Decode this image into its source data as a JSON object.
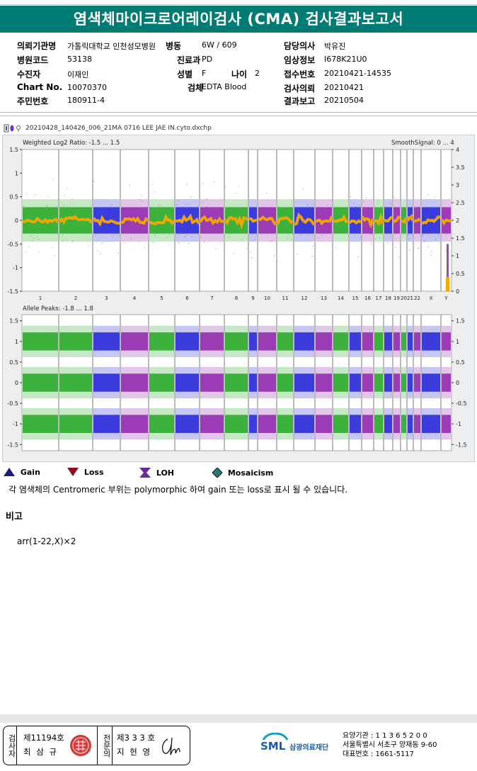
{
  "report_title": "염색체마이크로어레이검사 (CMA) 검사결과보고서",
  "patient_info": [
    {
      "label": "의뢰기관명",
      "value": "가톨릭대학교 인천성모병원"
    },
    {
      "label": "병동",
      "value": "6W / 609"
    },
    {
      "label": "담당의사",
      "value": "박유진"
    },
    {
      "label": "병원코드",
      "value": "53138"
    },
    {
      "label": "진료과",
      "value": "PD"
    },
    {
      "label": "임상정보",
      "value": "I678K21U0"
    },
    {
      "label": "수진자",
      "value": "이재인"
    },
    {
      "label": "성별",
      "value": "F"
    },
    {
      "label": "나이",
      "value": "2"
    },
    {
      "label": "접수번호",
      "value": "20210421-14535"
    },
    {
      "label": "Chart No.",
      "value": "10070370"
    },
    {
      "label": "검체",
      "value": "EDTA Blood"
    },
    {
      "label": "검사의뢰",
      "value": "20210421"
    },
    {
      "label": "주민번호",
      "value": "180911-4"
    },
    {
      "label": "결과보고",
      "value": "20210504"
    }
  ],
  "file_name": "20210428_140426_006_21MA 0716 LEE JAE IN.cyto.dxchp",
  "plot_top": {
    "label_left": "Weighted Log2 Ratio: -1.5 ... 1.5",
    "label_right": "SmoothSignal: 0 ... 4",
    "y_left_ticks": [
      "1.5",
      "1",
      "0.5",
      "0",
      "-0.5",
      "-1",
      "-1.5"
    ],
    "y_right_ticks": [
      "4",
      "3.5",
      "3",
      "2.5",
      "2",
      "1.5",
      "1",
      "0.5",
      "0"
    ]
  },
  "plot_bottom": {
    "label_left": "Allele Peaks: -1.8 ... 1.8",
    "y_left_ticks": [
      "1.5",
      "1",
      "0.5",
      "0",
      "-0.5",
      "-1",
      "-1.5"
    ],
    "y_right_ticks": [
      "1.5",
      "1",
      "0.5",
      "0",
      "-0.5",
      "-1",
      "-1.5"
    ]
  },
  "chromosomes": [
    "1",
    "2",
    "3",
    "4",
    "5",
    "6",
    "7",
    "8",
    "9",
    "10",
    "11",
    "12",
    "13",
    "14",
    "15",
    "16",
    "17",
    "18",
    "19",
    "20",
    "21",
    "22",
    "X",
    "Y"
  ],
  "colors": {
    "green": "#1aa41a",
    "blue": "#1a1ad6",
    "purple": "#8a1aa8",
    "orange": "#f5a800",
    "teal": "#007b74"
  },
  "legend": [
    {
      "icon": "gain-triangle-icon",
      "label": "Gain"
    },
    {
      "icon": "loss-triangle-icon",
      "label": "Loss"
    },
    {
      "icon": "loh-icon",
      "label": "LOH"
    },
    {
      "icon": "mosaicism-diamond-icon",
      "label": "Mosaicism"
    }
  ],
  "note": "각 염색체의 Centromeric 부위는 polymorphic 하여 gain 또는 loss로 표시 될 수 있습니다.",
  "remarks_title": "비고",
  "karyotype": "arr(1-22,X)×2",
  "signatures": {
    "left_role": "검사자",
    "left_license": "제11194호",
    "left_name": "최 삼 규",
    "right_role": "전문의",
    "right_license": "제3 3 3 호",
    "right_name": "지 현 영"
  },
  "org": {
    "logo_text": "SML",
    "name": "삼광의료재단",
    "line1": "요양기관 : 1 1 3 6 5 2 0 0",
    "line2": "서울특별시 서초구 양재동 9-60",
    "line3": "대표번호 : 1661-5117"
  }
}
